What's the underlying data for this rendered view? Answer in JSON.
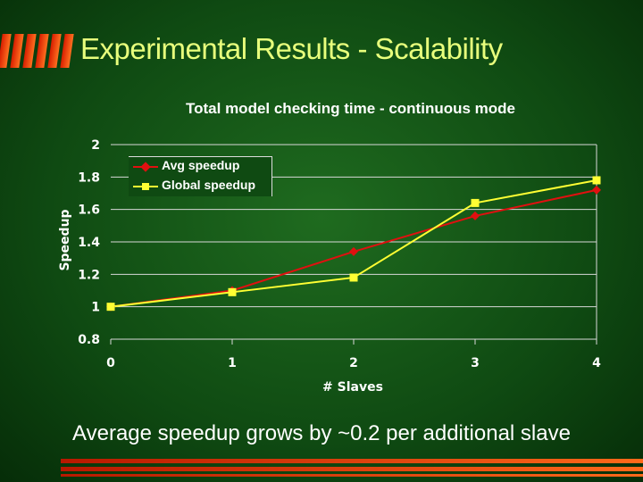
{
  "slide": {
    "title": "Experimental Results - Scalability",
    "caption": "Average speedup grows by ~0.2 per additional slave"
  },
  "colors": {
    "title": "#e8ff7c",
    "avg": "#e01010",
    "global": "#ffff33",
    "grid": "#d8d8d8"
  },
  "chart_data": {
    "type": "line",
    "title": "Total model checking time - continuous mode",
    "xlabel": "# Slaves",
    "ylabel": "Speedup",
    "x": [
      0,
      1,
      2,
      3,
      4
    ],
    "x_tick_labels": [
      "0",
      "1",
      "2",
      "3",
      "4"
    ],
    "y_tick_labels": [
      "0.8",
      "1",
      "1.2",
      "1.4",
      "1.6",
      "1.8",
      "2"
    ],
    "ylim": [
      0.8,
      2
    ],
    "xlim": [
      0,
      4
    ],
    "grid": true,
    "legend_position": "top-left",
    "series": [
      {
        "name": "Avg speedup",
        "marker": "diamond",
        "color": "#e01010",
        "values": [
          1.0,
          1.1,
          1.34,
          1.56,
          1.72
        ]
      },
      {
        "name": "Global speedup",
        "marker": "square",
        "color": "#ffff33",
        "values": [
          1.0,
          1.09,
          1.18,
          1.64,
          1.78
        ]
      }
    ]
  }
}
